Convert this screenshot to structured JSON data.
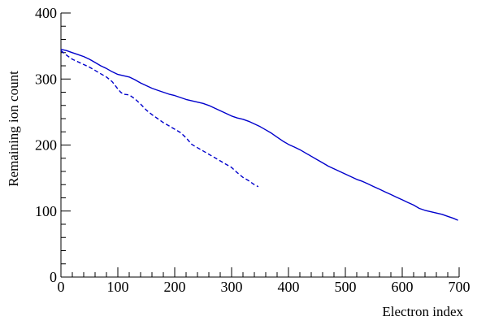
{
  "chart_data": {
    "type": "line",
    "title": "",
    "xlabel": "Electron index",
    "ylabel": "Remaining ion count",
    "xlim": [
      0,
      700
    ],
    "ylim": [
      0,
      400
    ],
    "xticks": [
      0,
      100,
      200,
      300,
      400,
      500,
      600,
      700
    ],
    "xtick_labels": [
      "0",
      "100",
      "200",
      "300",
      "400",
      "500",
      "600",
      "700"
    ],
    "yticks": [
      0,
      100,
      200,
      300,
      400
    ],
    "ytick_labels": [
      "0",
      "100",
      "200",
      "300",
      "400"
    ],
    "grid": false,
    "legend": "none",
    "series_color": "#0000cc",
    "series": [
      {
        "style": "solid",
        "points": [
          [
            0,
            345
          ],
          [
            10,
            343
          ],
          [
            20,
            340
          ],
          [
            30,
            337
          ],
          [
            40,
            334
          ],
          [
            50,
            330
          ],
          [
            60,
            325
          ],
          [
            70,
            320
          ],
          [
            80,
            316
          ],
          [
            90,
            311
          ],
          [
            100,
            307
          ],
          [
            110,
            305
          ],
          [
            120,
            303
          ],
          [
            130,
            299
          ],
          [
            140,
            294
          ],
          [
            150,
            290
          ],
          [
            160,
            286
          ],
          [
            170,
            283
          ],
          [
            180,
            280
          ],
          [
            190,
            277
          ],
          [
            200,
            275
          ],
          [
            210,
            272
          ],
          [
            220,
            269
          ],
          [
            230,
            267
          ],
          [
            240,
            265
          ],
          [
            250,
            263
          ],
          [
            260,
            260
          ],
          [
            270,
            256
          ],
          [
            280,
            252
          ],
          [
            290,
            248
          ],
          [
            300,
            244
          ],
          [
            310,
            241
          ],
          [
            320,
            239
          ],
          [
            330,
            236
          ],
          [
            340,
            232
          ],
          [
            350,
            228
          ],
          [
            360,
            223
          ],
          [
            370,
            218
          ],
          [
            380,
            212
          ],
          [
            390,
            206
          ],
          [
            400,
            201
          ],
          [
            410,
            197
          ],
          [
            420,
            193
          ],
          [
            430,
            188
          ],
          [
            440,
            183
          ],
          [
            450,
            178
          ],
          [
            460,
            173
          ],
          [
            470,
            168
          ],
          [
            480,
            164
          ],
          [
            490,
            160
          ],
          [
            500,
            156
          ],
          [
            510,
            152
          ],
          [
            520,
            148
          ],
          [
            530,
            145
          ],
          [
            540,
            141
          ],
          [
            550,
            137
          ],
          [
            560,
            133
          ],
          [
            570,
            129
          ],
          [
            580,
            125
          ],
          [
            590,
            121
          ],
          [
            600,
            117
          ],
          [
            610,
            113
          ],
          [
            620,
            109
          ],
          [
            630,
            104
          ],
          [
            640,
            101
          ],
          [
            650,
            99
          ],
          [
            660,
            97
          ],
          [
            670,
            95
          ],
          [
            680,
            92
          ],
          [
            690,
            89
          ],
          [
            698,
            86
          ]
        ]
      },
      {
        "style": "dashed",
        "points": [
          [
            0,
            343
          ],
          [
            10,
            336
          ],
          [
            20,
            330
          ],
          [
            30,
            326
          ],
          [
            40,
            322
          ],
          [
            50,
            318
          ],
          [
            60,
            313
          ],
          [
            70,
            308
          ],
          [
            80,
            303
          ],
          [
            90,
            296
          ],
          [
            100,
            285
          ],
          [
            105,
            280
          ],
          [
            110,
            277
          ],
          [
            120,
            276
          ],
          [
            130,
            270
          ],
          [
            140,
            262
          ],
          [
            150,
            253
          ],
          [
            160,
            246
          ],
          [
            170,
            240
          ],
          [
            180,
            234
          ],
          [
            190,
            229
          ],
          [
            200,
            224
          ],
          [
            210,
            219
          ],
          [
            220,
            211
          ],
          [
            230,
            201
          ],
          [
            240,
            196
          ],
          [
            250,
            191
          ],
          [
            260,
            186
          ],
          [
            270,
            181
          ],
          [
            280,
            176
          ],
          [
            290,
            171
          ],
          [
            300,
            166
          ],
          [
            310,
            158
          ],
          [
            320,
            151
          ],
          [
            330,
            146
          ],
          [
            340,
            140
          ],
          [
            347,
            137
          ]
        ]
      }
    ]
  }
}
